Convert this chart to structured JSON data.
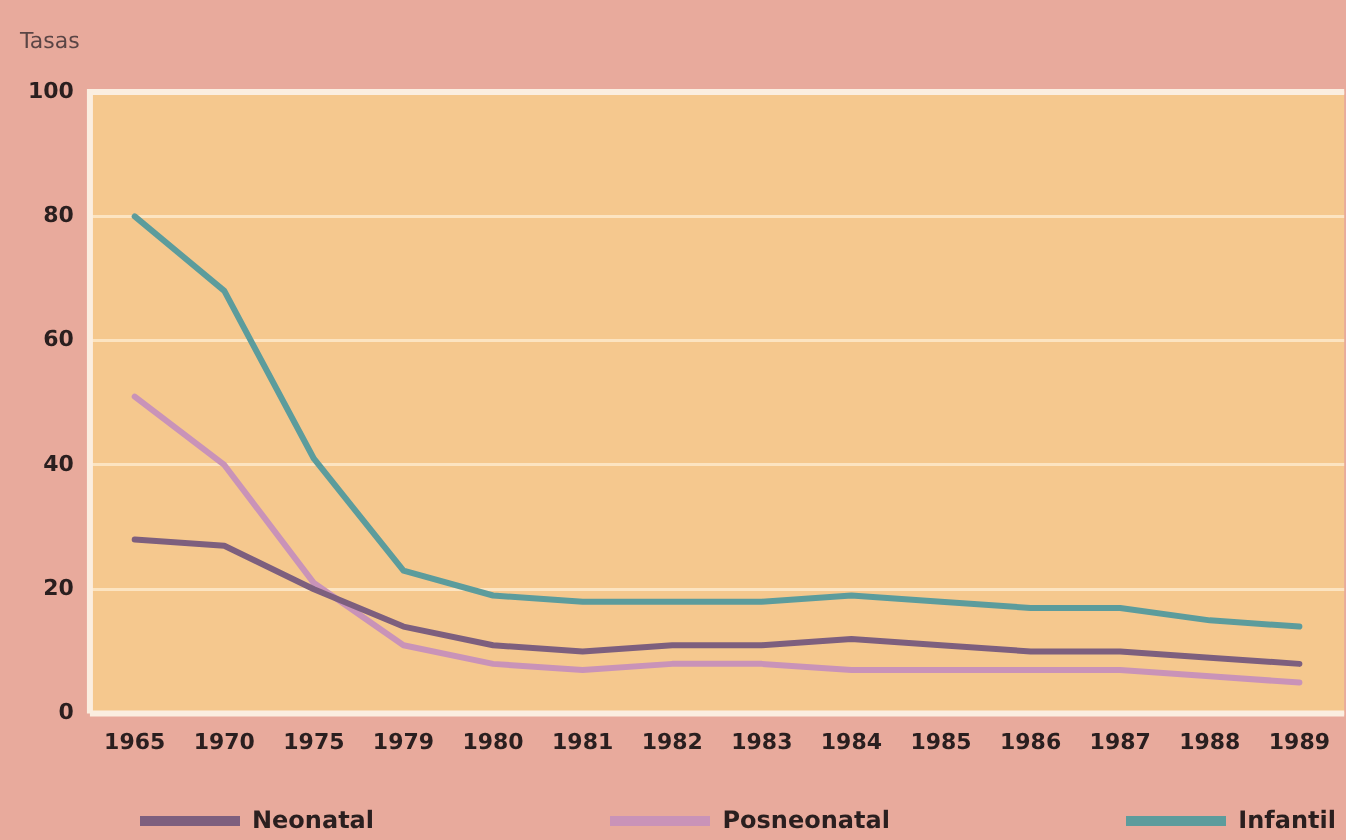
{
  "chart_data": {
    "type": "line",
    "ylabel": "Tasas",
    "categories": [
      "1965",
      "1970",
      "1975",
      "1979",
      "1980",
      "1981",
      "1982",
      "1983",
      "1984",
      "1985",
      "1986",
      "1987",
      "1988",
      "1989"
    ],
    "series": [
      {
        "name": "Neonatal",
        "color": "#7d5f7e",
        "values": [
          28,
          27,
          20,
          14,
          11,
          10,
          11,
          11,
          12,
          11,
          10,
          10,
          9,
          8
        ]
      },
      {
        "name": "Posneonatal",
        "color": "#c993b8",
        "values": [
          51,
          40,
          21,
          11,
          8,
          7,
          8,
          8,
          7,
          7,
          7,
          7,
          6,
          5
        ]
      },
      {
        "name": "Infantil",
        "color": "#5c9c9c",
        "values": [
          80,
          68,
          41,
          23,
          19,
          18,
          18,
          18,
          19,
          18,
          17,
          17,
          15,
          14
        ]
      }
    ],
    "ylim": [
      0,
      100
    ],
    "yticks": [
      0,
      20,
      40,
      60,
      80,
      100
    ],
    "grid": "y",
    "legend": "bottom",
    "marker": "none",
    "line_style": "solid"
  }
}
